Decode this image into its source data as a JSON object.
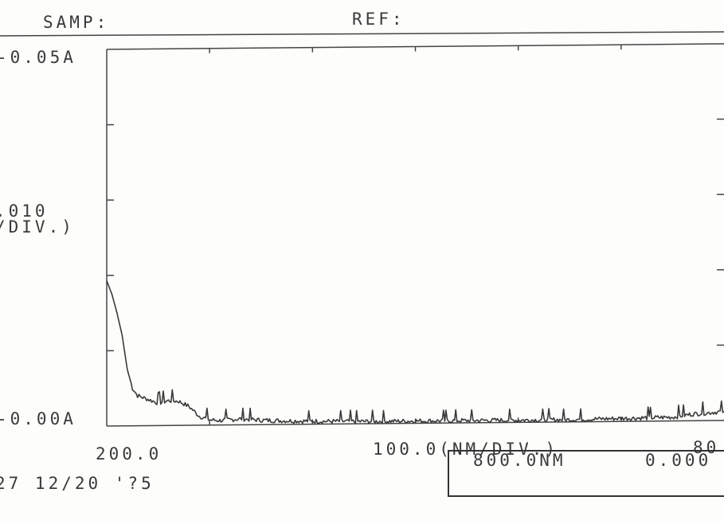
{
  "header": {
    "samp_label": "SAMP:",
    "ref_label": "REF:"
  },
  "chart_data": {
    "type": "line",
    "title": "",
    "xlabel": "100.0(NM/DIV.)",
    "ylabel": ".010 (/DIV.)",
    "xlim": [
      200.0,
      800.0
    ],
    "ylim": [
      0.0,
      0.05
    ],
    "grid": false,
    "tick_labels": {
      "y_top": "-0.05A",
      "y_mid_value": ".010",
      "y_mid_unit": "/DIV.)",
      "y_bottom": "-0.00A",
      "x_left": "200.0",
      "x_right": "80"
    },
    "series": [
      {
        "color": "#3a3a3a",
        "x": [
          200,
          205,
          210,
          215,
          220,
          225,
          230,
          240,
          250,
          260,
          270,
          280,
          290,
          300,
          310,
          330,
          350,
          370,
          400,
          450,
          500,
          550,
          600,
          650,
          700,
          750,
          770,
          790,
          800
        ],
        "y": [
          0.0193,
          0.0175,
          0.015,
          0.012,
          0.0075,
          0.005,
          0.004,
          0.0035,
          0.003,
          0.0033,
          0.0032,
          0.0025,
          0.0012,
          0.0007,
          0.0006,
          0.0008,
          0.0006,
          0.0005,
          0.0004,
          0.0003,
          0.0003,
          0.0003,
          0.0003,
          0.0003,
          0.0004,
          0.0005,
          0.0009,
          0.0011,
          0.0012
        ]
      }
    ]
  },
  "footer": {
    "date_text": "27 12/20 '?5",
    "readout_wavelength": "800.0NM",
    "readout_value": "0.000"
  },
  "colors": {
    "ink": "#3a3a3a",
    "paper": "#fdfdfb"
  }
}
